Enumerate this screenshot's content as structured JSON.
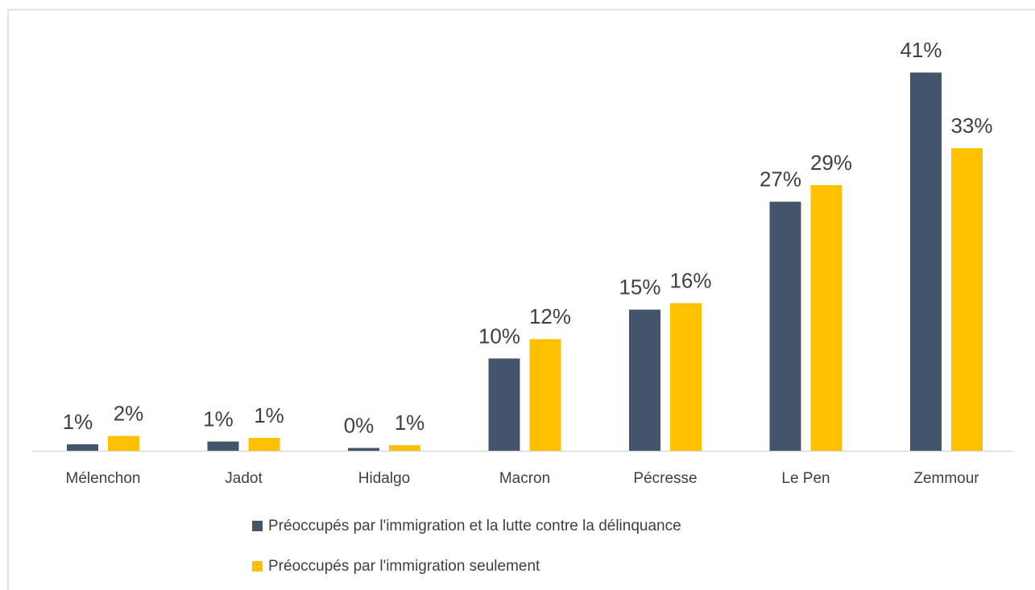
{
  "chart_data": {
    "type": "bar",
    "categories": [
      "Mélenchon",
      "Jadot",
      "Hidalgo",
      "Macron",
      "Pécresse",
      "Le Pen",
      "Zemmour"
    ],
    "series": [
      {
        "name": "Préoccupés par l'immigration et la lutte contre la délinquance",
        "color": "#44546a",
        "values": [
          0.7,
          1,
          0.3,
          10,
          15.3,
          27,
          41
        ],
        "value_labels": [
          "1%",
          "1%",
          "0%",
          "10%",
          "15%",
          "27%",
          "41%"
        ]
      },
      {
        "name": "Préoccupés par l'immigration seulement",
        "color": "#ffc000",
        "values": [
          1.6,
          1.4,
          0.6,
          12.1,
          16,
          28.8,
          32.8
        ],
        "value_labels": [
          "2%",
          "1%",
          "1%",
          "12%",
          "16%",
          "29%",
          "33%"
        ]
      }
    ]
  }
}
